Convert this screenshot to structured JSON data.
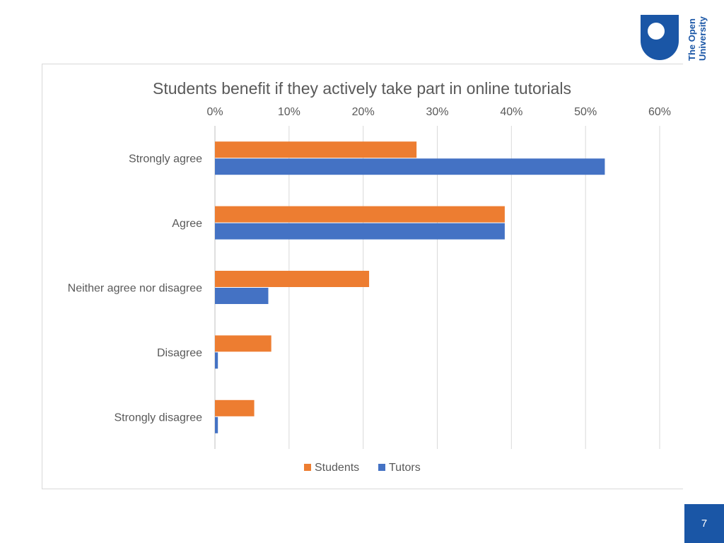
{
  "logo": {
    "text_line1": "The Open",
    "text_line2": "University",
    "brand_color": "#1a56a6"
  },
  "page_number": "7",
  "chart_data": {
    "type": "bar",
    "orientation": "horizontal",
    "title": "Students benefit if they actively take part in online tutorials",
    "categories": [
      "Strongly agree",
      "Agree",
      "Neither agree nor disagree",
      "Disagree",
      "Strongly disagree"
    ],
    "series": [
      {
        "name": "Students",
        "color": "#ed7d31",
        "values": [
          27.2,
          39.1,
          20.8,
          7.6,
          5.3
        ]
      },
      {
        "name": "Tutors",
        "color": "#4472c4",
        "values": [
          52.6,
          39.1,
          7.2,
          0.4,
          0.4
        ]
      }
    ],
    "x_ticks": [
      "0%",
      "10%",
      "20%",
      "30%",
      "40%",
      "50%",
      "60%"
    ],
    "xlim": [
      0,
      60
    ],
    "x_axis_position": "top",
    "grid": true,
    "legend_position": "bottom"
  }
}
